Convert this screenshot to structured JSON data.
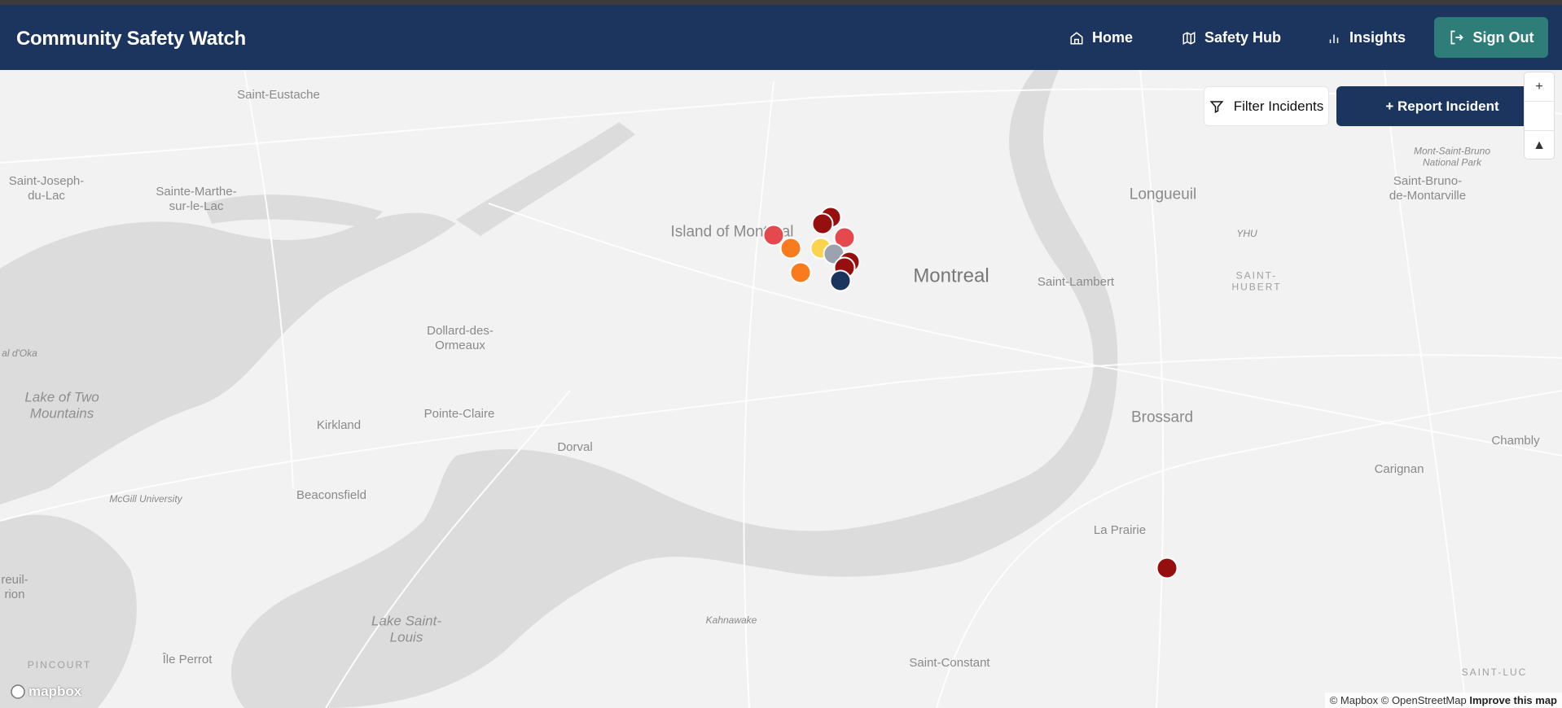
{
  "header": {
    "title": "Community Safety Watch",
    "nav": [
      {
        "label": "Home",
        "icon": "home-icon"
      },
      {
        "label": "Safety Hub",
        "icon": "map-icon"
      },
      {
        "label": "Insights",
        "icon": "bar-chart-icon"
      }
    ],
    "sign_out": {
      "label": "Sign Out",
      "icon": "log-out-icon",
      "color": "#2e7d78"
    }
  },
  "toolbar": {
    "filter_label": "Filter Incidents",
    "report_label": "+ Report Incident"
  },
  "map_controls": {
    "zoom_in": "+",
    "compass": "▲"
  },
  "map_labels": [
    {
      "text": "Saint-Eustache",
      "cls": ""
    },
    {
      "text": "Saint-Joseph-\ndu-Lac",
      "cls": ""
    },
    {
      "text": "Sainte-Marthe-\nsur-le-Lac",
      "cls": ""
    },
    {
      "text": "Island of Montreal",
      "cls": "mid"
    },
    {
      "text": "Montreal",
      "cls": "big"
    },
    {
      "text": "Longueuil",
      "cls": "mid"
    },
    {
      "text": "YHU",
      "cls": "sm"
    },
    {
      "text": "SAINT-\nHUBERT",
      "cls": "caps"
    },
    {
      "text": "Saint-Lambert",
      "cls": ""
    },
    {
      "text": "Mont-Saint-Bruno\nNational Park",
      "cls": "sm"
    },
    {
      "text": "Saint-Bruno-\nde-Montarville",
      "cls": ""
    },
    {
      "text": "Dollard-des-\nOrmeaux",
      "cls": ""
    },
    {
      "text": "Lake of Two\nMountains",
      "cls": "it"
    },
    {
      "text": "Pointe-Claire",
      "cls": ""
    },
    {
      "text": "Kirkland",
      "cls": ""
    },
    {
      "text": "Dorval",
      "cls": ""
    },
    {
      "text": "Beaconsfield",
      "cls": ""
    },
    {
      "text": "McGill University",
      "cls": "sm"
    },
    {
      "text": "Brossard",
      "cls": "mid"
    },
    {
      "text": "Chambly",
      "cls": ""
    },
    {
      "text": "Carignan",
      "cls": ""
    },
    {
      "text": "La Prairie",
      "cls": ""
    },
    {
      "text": "Kahnawake",
      "cls": "sm"
    },
    {
      "text": "Lake Saint-\nLouis",
      "cls": "it"
    },
    {
      "text": "Saint-Constant",
      "cls": ""
    },
    {
      "text": "Île Perrot",
      "cls": ""
    },
    {
      "text": "PINCOURT",
      "cls": "caps"
    },
    {
      "text": "SAINT-LUC",
      "cls": "caps"
    },
    {
      "text": "reuil-\nrion",
      "cls": ""
    },
    {
      "text": "al d'Oka",
      "cls": "sm"
    }
  ],
  "incidents": [
    {
      "color": "#e5484d"
    },
    {
      "color": "#f97b1e"
    },
    {
      "color": "#f97b1e"
    },
    {
      "color": "#950f0f"
    },
    {
      "color": "#950f0f"
    },
    {
      "color": "#e5484d"
    },
    {
      "color": "#fcd34d"
    },
    {
      "color": "#9ca3af"
    },
    {
      "color": "#950f0f"
    },
    {
      "color": "#950f0f"
    },
    {
      "color": "#1c355e"
    },
    {
      "color": "#950f0f"
    }
  ],
  "branding": {
    "logo": "mapbox"
  },
  "attribution": {
    "text": "© Mapbox © OpenStreetMap",
    "improve": "Improve this map"
  }
}
